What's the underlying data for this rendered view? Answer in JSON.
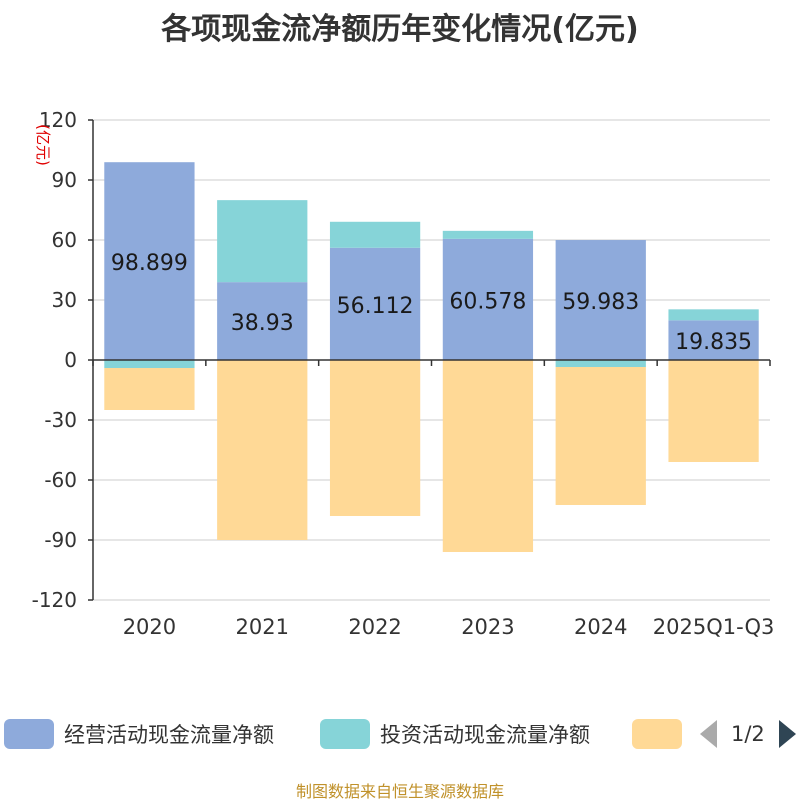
{
  "title": "各项现金流净额历年变化情况(亿元)",
  "source": "制图数据来自恒生聚源数据库",
  "pager_text": "1/2",
  "chart_data": {
    "type": "bar",
    "stacked": true,
    "title": "各项现金流净额历年变化情况(亿元)",
    "ylabel": "(亿元)",
    "ylim": [
      -120,
      120
    ],
    "yticks": [
      -120,
      -90,
      -60,
      -30,
      0,
      30,
      60,
      90,
      120
    ],
    "categories": [
      "2020",
      "2021",
      "2022",
      "2023",
      "2024",
      "2025Q1-Q3"
    ],
    "series": [
      {
        "name": "经营活动现金流量净额",
        "color": "#8eaadb",
        "values": [
          98.899,
          38.93,
          56.112,
          60.578,
          59.983,
          19.835
        ],
        "labels": [
          "98.899",
          "38.93",
          "56.112",
          "60.578",
          "59.983",
          "19.835"
        ]
      },
      {
        "name": "投资活动现金流量净额",
        "color": "#86d4d8",
        "values": [
          -4,
          41,
          13,
          4,
          -3.5,
          5.5
        ]
      },
      {
        "name": "",
        "color": "#ffd996",
        "values": [
          -21,
          -90,
          -78,
          -96,
          -69,
          -51
        ]
      }
    ]
  }
}
